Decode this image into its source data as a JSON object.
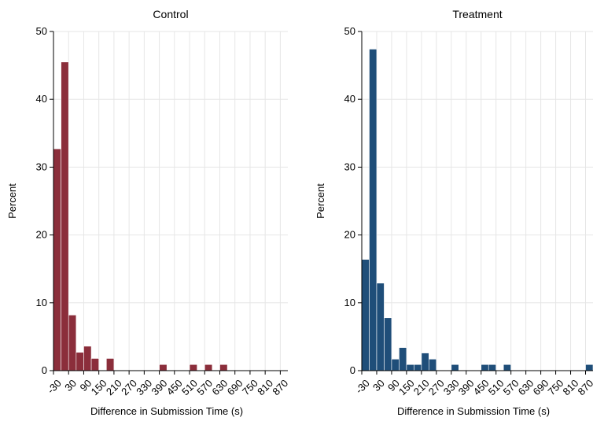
{
  "chart_data": [
    {
      "type": "bar",
      "title": "Control",
      "xlabel": "Difference in Submission Time (s)",
      "ylabel": "Percent",
      "color": "#8b2e3b",
      "ylim": [
        0,
        50
      ],
      "yticks": [
        0,
        10,
        20,
        30,
        40,
        50
      ],
      "xlim": [
        -30,
        900
      ],
      "xticks": [
        -30,
        30,
        90,
        150,
        210,
        270,
        330,
        390,
        450,
        510,
        570,
        630,
        690,
        750,
        810,
        870
      ],
      "bin_width": 30,
      "bins": [
        {
          "x": -30,
          "value": 32.7
        },
        {
          "x": 0,
          "value": 45.5
        },
        {
          "x": 30,
          "value": 8.2
        },
        {
          "x": 60,
          "value": 2.7
        },
        {
          "x": 90,
          "value": 3.6
        },
        {
          "x": 120,
          "value": 1.8
        },
        {
          "x": 180,
          "value": 1.8
        },
        {
          "x": 390,
          "value": 0.9
        },
        {
          "x": 510,
          "value": 0.9
        },
        {
          "x": 570,
          "value": 0.9
        },
        {
          "x": 630,
          "value": 0.9
        }
      ]
    },
    {
      "type": "bar",
      "title": "Treatment",
      "xlabel": "Difference in Submission Time (s)",
      "ylabel": "Percent",
      "color": "#1f4e79",
      "ylim": [
        0,
        50
      ],
      "yticks": [
        0,
        10,
        20,
        30,
        40,
        50
      ],
      "xlim": [
        -30,
        900
      ],
      "xticks": [
        -30,
        30,
        90,
        150,
        210,
        270,
        330,
        390,
        450,
        510,
        570,
        630,
        690,
        750,
        810,
        870
      ],
      "bin_width": 30,
      "bins": [
        {
          "x": -30,
          "value": 16.4
        },
        {
          "x": 0,
          "value": 47.4
        },
        {
          "x": 30,
          "value": 12.9
        },
        {
          "x": 60,
          "value": 7.8
        },
        {
          "x": 90,
          "value": 1.7
        },
        {
          "x": 120,
          "value": 3.4
        },
        {
          "x": 150,
          "value": 0.9
        },
        {
          "x": 180,
          "value": 0.9
        },
        {
          "x": 210,
          "value": 2.6
        },
        {
          "x": 240,
          "value": 1.7
        },
        {
          "x": 330,
          "value": 0.9
        },
        {
          "x": 450,
          "value": 0.9
        },
        {
          "x": 480,
          "value": 0.9
        },
        {
          "x": 540,
          "value": 0.9
        },
        {
          "x": 870,
          "value": 0.9
        }
      ]
    }
  ]
}
